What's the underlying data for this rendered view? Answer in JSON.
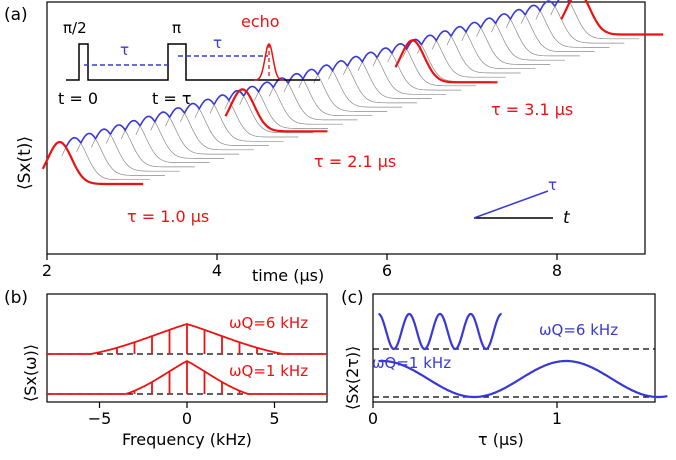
{
  "colors": {
    "red": "#ee1111",
    "blue": "#3838d8",
    "gray": "#8a8a8a",
    "black": "#000000"
  },
  "chart_data": [
    {
      "panel": "(a)",
      "type": "line",
      "xlabel": "time (µs)",
      "ylabel": "⟨Sx(t)⟩",
      "xlim": [
        2,
        9
      ],
      "xticks": [
        2,
        4,
        6,
        8
      ],
      "series": [
        {
          "tau": "τ = 1.0 µs",
          "echo_center": 2.15,
          "envelope_ranges": [
            [
              2.0,
              4.3
            ]
          ]
        },
        {
          "tau": "τ = 2.1 µs",
          "echo_center": 4.3,
          "envelope_ranges": [
            [
              4.2,
              6.4
            ]
          ]
        },
        {
          "tau": "τ = 3.1 µs",
          "echo_center": 6.3,
          "envelope_ranges": [
            [
              6.2,
              8.4
            ]
          ]
        },
        {
          "tau": "",
          "echo_center": 8.25
        }
      ],
      "echo_labels": [
        "τ = 1.0 µs",
        "τ = 2.1 µs",
        "τ = 3.1 µs"
      ],
      "inset": {
        "pulses": [
          "π/2",
          "π"
        ],
        "times": [
          "t = 0",
          "t = τ"
        ],
        "delay": "τ",
        "echo": "echo"
      },
      "axes_legend": {
        "tau": "τ",
        "t": "t"
      }
    },
    {
      "panel": "(b)",
      "type": "line",
      "xlabel": "Frequency (kHz)",
      "ylabel": "⟨Sx(ω)⟩",
      "xlim": [
        -8,
        8
      ],
      "xticks": [
        -5,
        0,
        5
      ],
      "series": [
        {
          "label": "ωQ=6 kHz",
          "spike_spacing_khz": 1,
          "envelope_halfwidth_khz": 5.5
        },
        {
          "label": "ωQ=1 kHz",
          "spike_spacing_khz": 1,
          "envelope_halfwidth_khz": 3.5
        }
      ]
    },
    {
      "panel": "(c)",
      "type": "line",
      "xlabel": "τ (µs)",
      "ylabel": "⟨Sx(2τ)⟩",
      "xlim": [
        0,
        1.6
      ],
      "xticks": [
        0,
        1
      ],
      "series": [
        {
          "label": "ωQ=6 kHz",
          "period_us": 0.167
        },
        {
          "label": "ωQ=1 kHz",
          "period_us": 1.0
        }
      ]
    }
  ]
}
